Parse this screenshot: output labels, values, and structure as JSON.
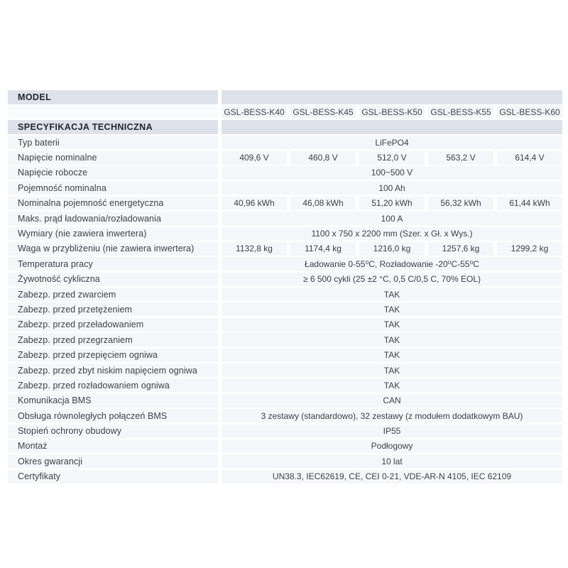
{
  "colors": {
    "header_band": "#dee1ea",
    "row_background": "#f5f6f9",
    "header_text": "#23262e",
    "body_text": "#3d4046",
    "page_background": "#ffffff"
  },
  "table": {
    "model_header": "MODEL",
    "spec_header": "SPECYFIKACJA TECHNICZNA",
    "models": [
      "GSL-BESS-K40",
      "GSL-BESS-K45",
      "GSL-BESS-K50",
      "GSL-BESS-K55",
      "GSL-BESS-K60"
    ],
    "rows": [
      {
        "label": "Typ baterii",
        "span": "LiFePO4"
      },
      {
        "label": "Napięcie nominalne",
        "values": [
          "409,6 V",
          "460,8 V",
          "512,0 V",
          "563,2 V",
          "614,4 V"
        ]
      },
      {
        "label": "Napięcie robocze",
        "span": "100~500 V"
      },
      {
        "label": "Pojemność nominalna",
        "span": "100 Ah"
      },
      {
        "label": "Nominalna pojemność energetyczna",
        "values": [
          "40,96 kWh",
          "46,08 kWh",
          "51,20 kWh",
          "56,32 kWh",
          "61,44 kWh"
        ]
      },
      {
        "label": "Maks. prąd ładowania/rozładowania",
        "span": "100 A"
      },
      {
        "label": "Wymiary (nie zawiera inwertera)",
        "span": "1100 x 750 x 2200 mm (Szer. x Gł. x Wys.)"
      },
      {
        "label": "Waga w przybliżeniu (nie zawiera inwertera)",
        "values": [
          "1132,8 kg",
          "1174,4 kg",
          "1216,0 kg",
          "1257,6 kg",
          "1299,2 kg"
        ]
      },
      {
        "label": "Temperatura pracy",
        "span": "Ładowanie 0-55⁰C, Rozładowanie -20⁰C-55⁰C"
      },
      {
        "label": "Żywotność cykliczna",
        "span": "≥ 6 500 cykli (25 ±2 °C, 0,5 C/0,5 C, 70% EOL)"
      },
      {
        "label": "Zabezp. przed zwarciem",
        "span": "TAK"
      },
      {
        "label": "Zabezp. przed przetężeniem",
        "span": "TAK"
      },
      {
        "label": "Zabezp. przed przeładowaniem",
        "span": "TAK"
      },
      {
        "label": "Zabezp. przed przegrzaniem",
        "span": "TAK"
      },
      {
        "label": "Zabezp. przed przepięciem ogniwa",
        "span": "TAK"
      },
      {
        "label": "Zabezp. przed zbyt niskim napięciem ogniwa",
        "span": "TAK"
      },
      {
        "label": "Zabezp. przed rozładowaniem ogniwa",
        "span": "TAK"
      },
      {
        "label": "Komunikacja BMS",
        "span": "CAN"
      },
      {
        "label": "Obsługa równoległych połączeń BMS",
        "span": "3 zestawy (standardowo), 32 zestawy (z modułem dodatkowym BAU)"
      },
      {
        "label": "Stopień ochrony obudowy",
        "span": "IP55"
      },
      {
        "label": "Montaż",
        "span": "Podłogowy"
      },
      {
        "label": "Okres gwarancji",
        "span": "10 lat"
      },
      {
        "label": "Certyfikaty",
        "span": "UN38.3, IEC62619, CE, CEI 0-21, VDE-AR-N 4105, IEC 62109"
      }
    ]
  }
}
